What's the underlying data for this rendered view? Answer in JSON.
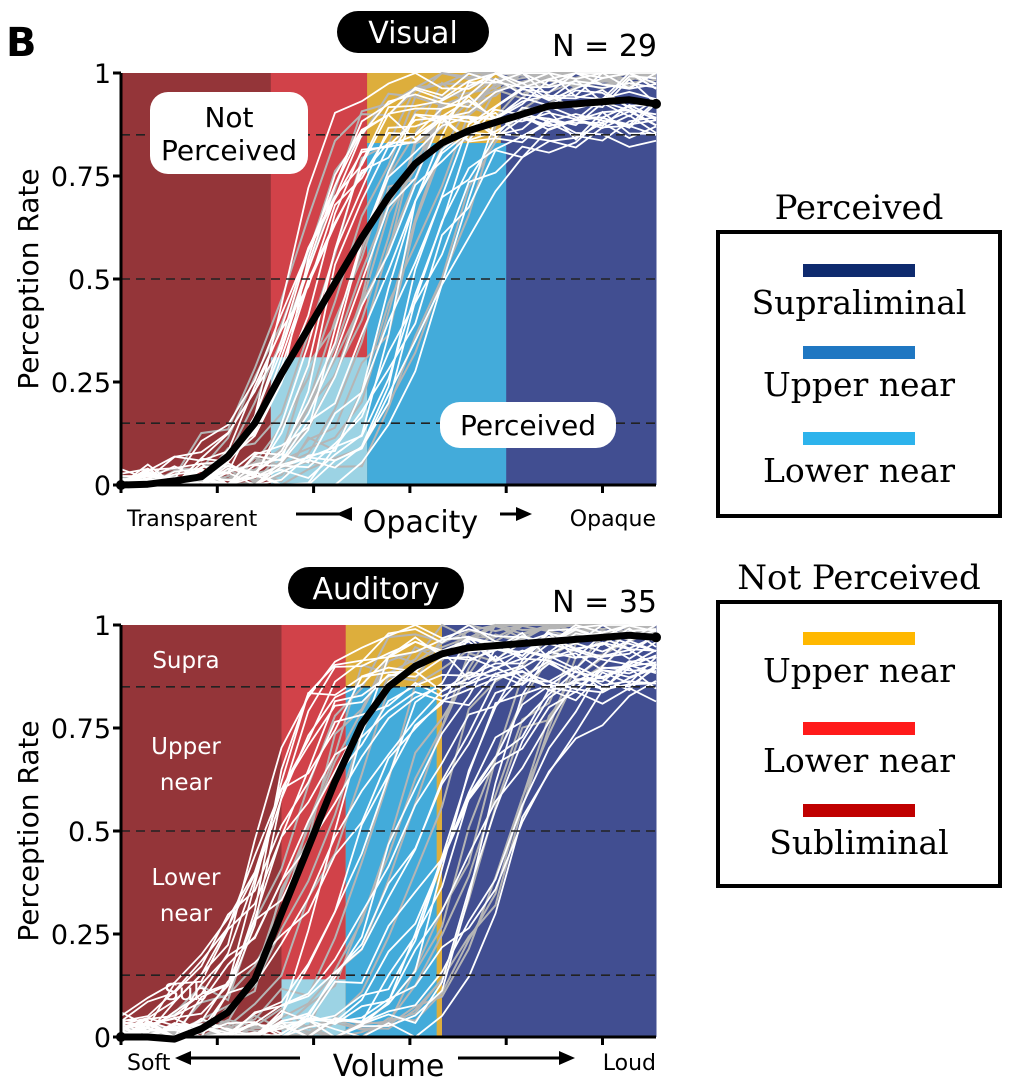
{
  "panel_letter": "B",
  "colors": {
    "subliminal": "#943539",
    "lower_near_not": "#D14249",
    "upper_near_not": "#DDAE3C",
    "lower_near_perc": "#9CD3E4",
    "upper_near_perc": "#43ABDA",
    "supraliminal": "#414E91",
    "legend_supraliminal": "#0E2A6E",
    "legend_upper_near_perc": "#1F77C2",
    "legend_lower_near_perc": "#2DB3EC",
    "legend_upper_near_not": "#FFB800",
    "legend_lower_near_not": "#FF1A1A",
    "legend_subliminal": "#C00000"
  },
  "legend": {
    "perceived_title": "Perceived",
    "perceived_items": [
      "Supraliminal",
      "Upper near",
      "Lower near"
    ],
    "not_perceived_title": "Not Perceived",
    "not_perceived_items": [
      "Upper near",
      "Lower near",
      "Subliminal"
    ]
  },
  "chart_data": [
    {
      "type": "line",
      "title": "Visual",
      "n_label": "N = 29",
      "ylabel": "Perception Rate",
      "xlabel": "Opacity",
      "x_left_label": "Transparent",
      "x_right_label": "Opaque",
      "yticks": [
        "0",
        "0.25",
        "0.5",
        "0.75",
        "1"
      ],
      "ylim": [
        0,
        1
      ],
      "thresholds": [
        0.15,
        0.5,
        0.85
      ],
      "annotations": [
        "Not Perceived",
        "Perceived"
      ],
      "series": [
        {
          "x": [
            0,
            0.05,
            0.1,
            0.15,
            0.2,
            0.25,
            0.3,
            0.35,
            0.4,
            0.45,
            0.5,
            0.55,
            0.6,
            0.65,
            0.7,
            0.75,
            0.8,
            0.85,
            0.9,
            0.95,
            1
          ],
          "y": [
            0,
            0.002,
            0.01,
            0.02,
            0.07,
            0.15,
            0.27,
            0.38,
            0.49,
            0.6,
            0.7,
            0.78,
            0.83,
            0.86,
            0.88,
            0.9,
            0.92,
            0.925,
            0.93,
            0.935,
            0.925
          ]
        }
      ]
    },
    {
      "type": "line",
      "title": "Auditory",
      "n_label": "N = 35",
      "ylabel": "Perception Rate",
      "xlabel": "Volume",
      "x_left_label": "Soft",
      "x_right_label": "Loud",
      "yticks": [
        "0",
        "0.25",
        "0.5",
        "0.75",
        "1"
      ],
      "ylim": [
        0,
        1
      ],
      "thresholds": [
        0.15,
        0.5,
        0.85
      ],
      "annotations": [
        "Supra",
        "Upper near",
        "Lower near",
        "Sub"
      ],
      "series": [
        {
          "x": [
            0,
            0.05,
            0.1,
            0.15,
            0.2,
            0.25,
            0.3,
            0.35,
            0.4,
            0.45,
            0.5,
            0.55,
            0.6,
            0.65,
            0.7,
            0.75,
            0.8,
            0.85,
            0.9,
            0.95,
            1
          ],
          "y": [
            0,
            0.0,
            -0.005,
            0.02,
            0.06,
            0.14,
            0.3,
            0.46,
            0.62,
            0.76,
            0.85,
            0.9,
            0.93,
            0.945,
            0.95,
            0.955,
            0.96,
            0.965,
            0.97,
            0.975,
            0.97
          ]
        }
      ]
    }
  ]
}
